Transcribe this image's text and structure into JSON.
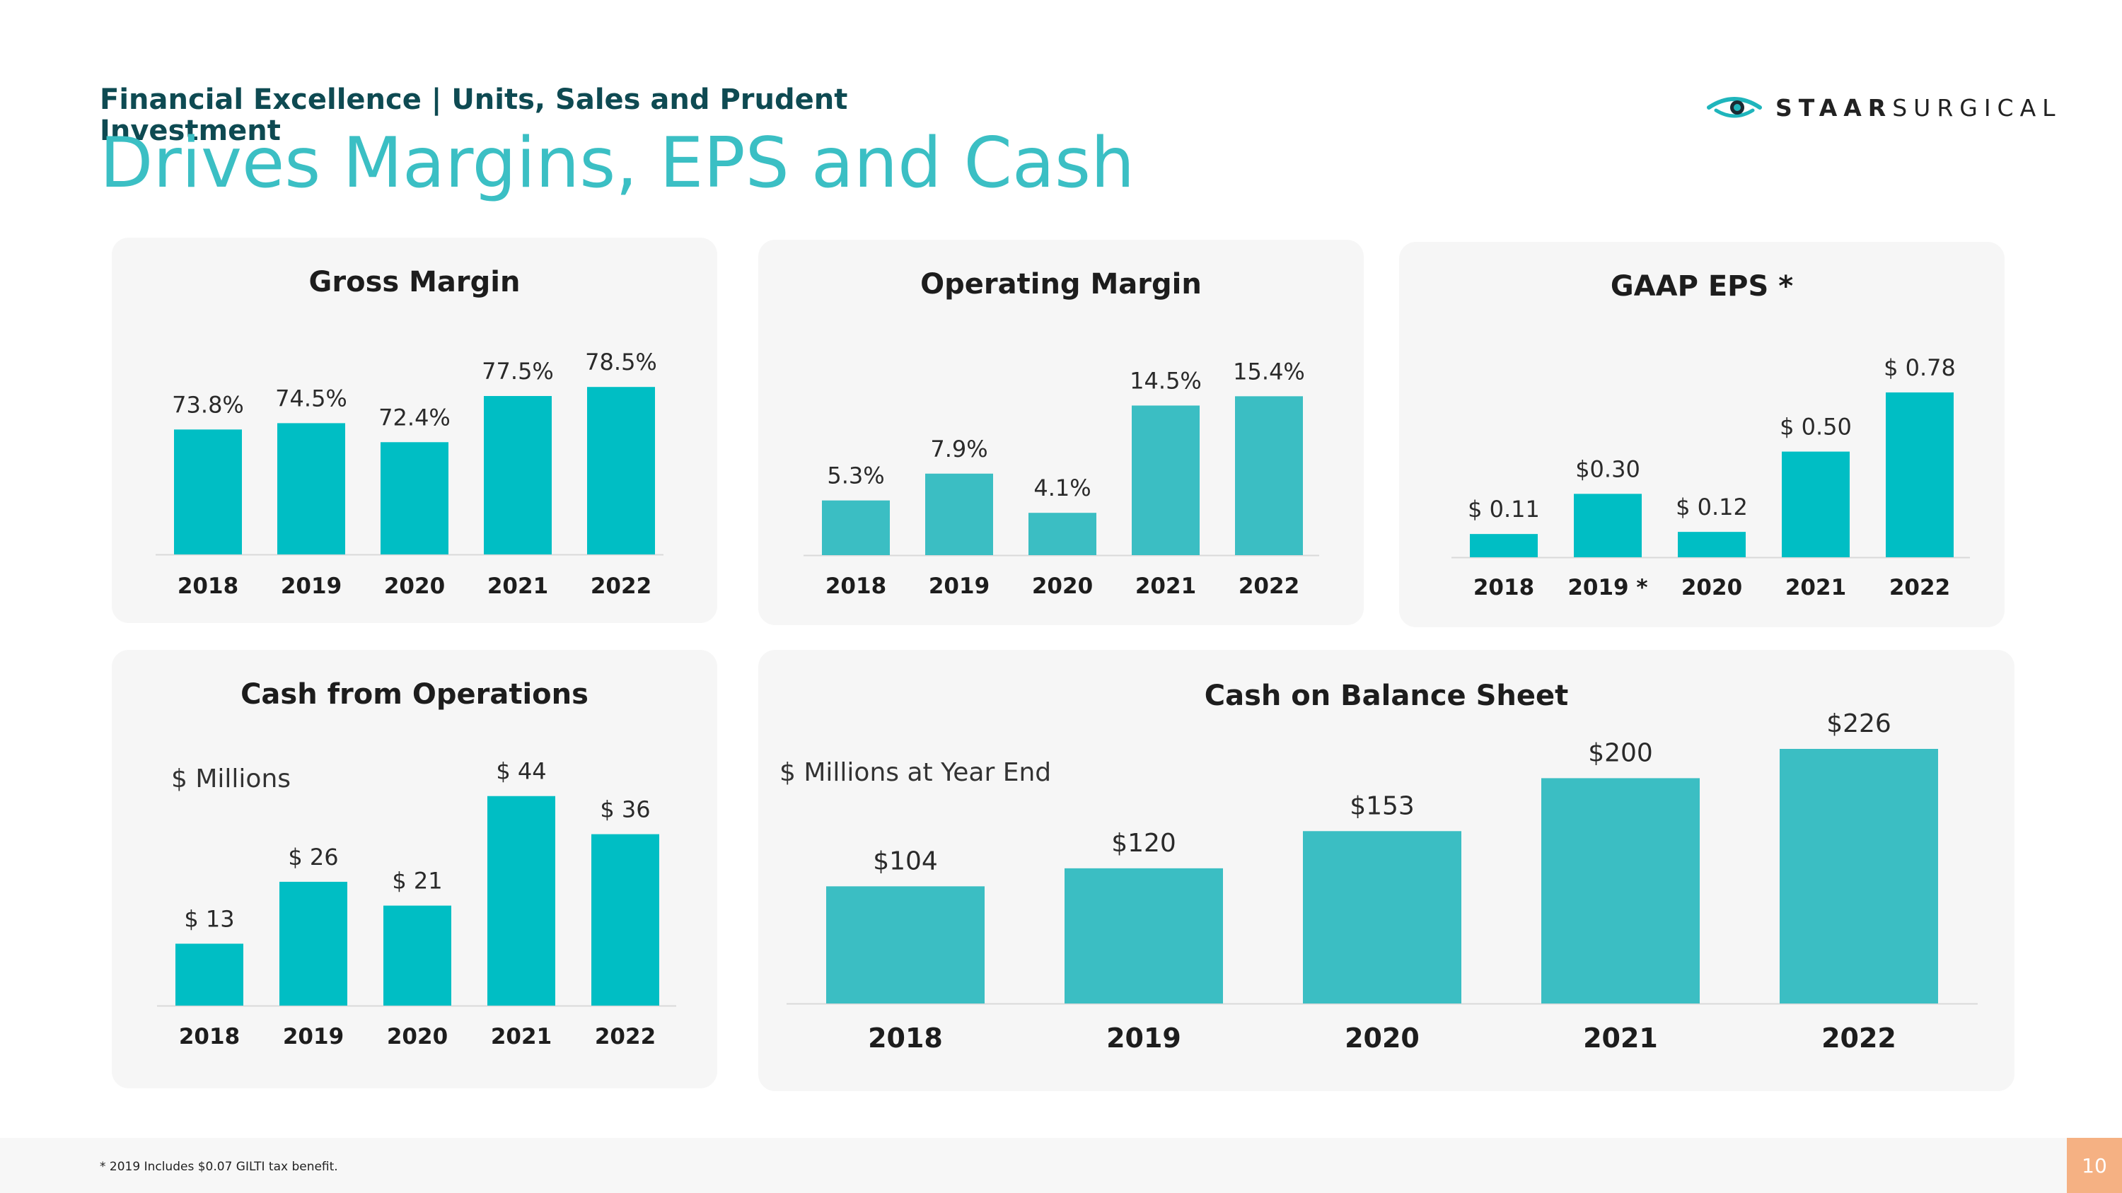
{
  "header": {
    "subtitle": "Financial Excellence | Units, Sales and Prudent Investment",
    "title": "Drives Margins, EPS and Cash"
  },
  "logo": {
    "bold": "STAAR",
    "light": "SURGICAL"
  },
  "footer": {
    "note": "* 2019 Includes $0.07 GILTI tax benefit.",
    "page": "10"
  },
  "colors": {
    "bar_bright": "#00bec4",
    "bar_soft": "#3bbec3",
    "title": "#3bbfc4",
    "text": "#222222"
  },
  "chart_data": [
    {
      "type": "bar",
      "title": "Gross Margin",
      "categories": [
        "2018",
        "2019",
        "2020",
        "2021",
        "2022"
      ],
      "values": [
        73.8,
        74.5,
        72.4,
        77.5,
        78.5
      ],
      "labels": [
        "73.8%",
        "74.5%",
        "72.4%",
        "77.5%",
        "78.5%"
      ],
      "unit_label": "",
      "ylim": [
        60,
        80
      ],
      "xlabel": "",
      "ylabel": "",
      "grid": false
    },
    {
      "type": "bar",
      "title": "Operating Margin",
      "categories": [
        "2018",
        "2019",
        "2020",
        "2021",
        "2022"
      ],
      "values": [
        5.3,
        7.9,
        4.1,
        14.5,
        15.4
      ],
      "labels": [
        "5.3%",
        "7.9%",
        "4.1%",
        "14.5%",
        "15.4%"
      ],
      "unit_label": "",
      "ylim": [
        0,
        17
      ],
      "xlabel": "",
      "ylabel": "",
      "grid": false
    },
    {
      "type": "bar",
      "title": "GAAP EPS *",
      "categories": [
        "2018",
        "2019 *",
        "2020",
        "2021",
        "2022"
      ],
      "values": [
        0.11,
        0.3,
        0.12,
        0.5,
        0.78
      ],
      "labels": [
        "$ 0.11",
        "$0.30",
        "$ 0.12",
        "$ 0.50",
        "$ 0.78"
      ],
      "unit_label": "",
      "ylim": [
        0,
        0.85
      ],
      "xlabel": "",
      "ylabel": "",
      "grid": false
    },
    {
      "type": "bar",
      "title": "Cash from Operations",
      "categories": [
        "2018",
        "2019",
        "2020",
        "2021",
        "2022"
      ],
      "values": [
        13,
        26,
        21,
        44,
        36
      ],
      "labels": [
        "$ 13",
        "$ 26",
        "$ 21",
        "$ 44",
        "$ 36"
      ],
      "unit_label": "$ Millions",
      "ylim": [
        0,
        45
      ],
      "xlabel": "",
      "ylabel": "",
      "grid": false
    },
    {
      "type": "bar",
      "title": "Cash on Balance Sheet",
      "categories": [
        "2018",
        "2019",
        "2020",
        "2021",
        "2022"
      ],
      "values": [
        104,
        120,
        153,
        200,
        226
      ],
      "labels": [
        "$104",
        "$120",
        "$153",
        "$200",
        "$226"
      ],
      "unit_label": "$ Millions at Year End",
      "ylim": [
        0,
        226
      ],
      "xlabel": "",
      "ylabel": "",
      "grid": false
    }
  ]
}
